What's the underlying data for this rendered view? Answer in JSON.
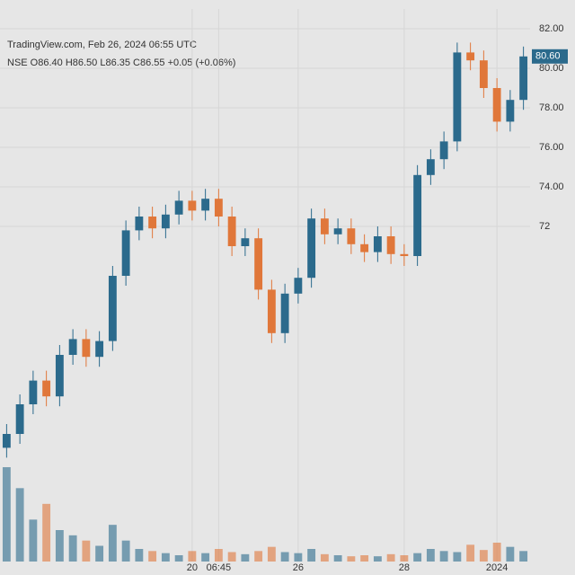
{
  "chart_data": {
    "type": "candlestick",
    "title": "TradingView.com, Feb 26, 2024 06:55 UTC",
    "subtitle": "NSE O86.40 H86.50 L86.35 C86.55 +0.05 (+0.06%)",
    "last_label": "80.60",
    "categories": [
      null,
      null,
      null,
      null,
      null,
      null,
      null,
      null,
      null,
      null,
      null,
      null,
      null,
      null,
      "20",
      null,
      "06:45",
      null,
      null,
      null,
      null,
      null,
      "26",
      null,
      null,
      null,
      null,
      null,
      null,
      null,
      "28",
      null,
      null,
      null,
      null,
      null,
      null,
      "2024",
      null,
      null
    ],
    "open": [
      60.8,
      61.5,
      63.0,
      64.2,
      63.4,
      65.5,
      66.3,
      65.4,
      66.2,
      69.5,
      71.8,
      72.5,
      71.9,
      72.6,
      73.3,
      72.8,
      73.4,
      72.5,
      71.0,
      71.4,
      68.8,
      66.6,
      68.6,
      69.4,
      72.4,
      71.6,
      71.9,
      71.1,
      70.7,
      71.5,
      70.6,
      70.5,
      74.6,
      75.4,
      76.3,
      80.8,
      80.4,
      79.0,
      77.3,
      78.4
    ],
    "high": [
      62.0,
      63.5,
      64.7,
      64.7,
      66.0,
      66.8,
      66.8,
      66.7,
      70.0,
      72.3,
      73.0,
      73.0,
      73.1,
      73.8,
      73.8,
      73.9,
      73.9,
      73.0,
      71.9,
      71.9,
      69.3,
      69.1,
      69.9,
      72.9,
      72.9,
      72.4,
      72.4,
      71.6,
      72.0,
      72.0,
      71.1,
      75.1,
      75.9,
      76.8,
      81.3,
      81.3,
      80.9,
      79.5,
      78.9,
      81.1
    ],
    "low": [
      60.3,
      61.0,
      62.5,
      62.9,
      62.9,
      65.0,
      64.9,
      64.9,
      65.7,
      69.0,
      71.3,
      71.4,
      71.4,
      72.1,
      72.3,
      72.3,
      72.0,
      70.5,
      70.5,
      68.3,
      66.1,
      66.1,
      68.1,
      68.9,
      71.1,
      71.1,
      70.6,
      70.2,
      70.2,
      70.1,
      70.0,
      70.0,
      74.1,
      74.9,
      75.8,
      79.9,
      78.5,
      76.8,
      76.8,
      77.9
    ],
    "close": [
      61.5,
      63.0,
      64.2,
      63.4,
      65.5,
      66.3,
      65.4,
      66.2,
      69.5,
      71.8,
      72.5,
      71.9,
      72.6,
      73.3,
      72.8,
      73.4,
      72.5,
      71.0,
      71.4,
      68.8,
      66.6,
      68.6,
      69.4,
      72.4,
      71.6,
      71.9,
      71.1,
      70.7,
      71.5,
      70.6,
      70.5,
      74.6,
      75.4,
      76.3,
      80.8,
      80.4,
      79.0,
      77.3,
      78.4,
      80.6
    ],
    "volume": [
      90,
      70,
      40,
      55,
      30,
      25,
      20,
      15,
      35,
      20,
      12,
      10,
      8,
      6,
      10,
      8,
      12,
      9,
      7,
      10,
      14,
      9,
      8,
      12,
      7,
      6,
      5,
      6,
      5,
      7,
      6,
      8,
      12,
      10,
      9,
      16,
      11,
      18,
      14,
      10
    ],
    "up_color": "#2b6a8c",
    "down_color": "#e0773a",
    "ylim": [
      58,
      83
    ],
    "yticks": [
      {
        "value": 72,
        "label": "72"
      },
      {
        "value": 74,
        "label": "74.00"
      },
      {
        "value": 76,
        "label": "76.00"
      },
      {
        "value": 78,
        "label": "78.00"
      },
      {
        "value": 80,
        "label": "80.00"
      },
      {
        "value": 82,
        "label": "82.00"
      }
    ],
    "grid": true
  }
}
